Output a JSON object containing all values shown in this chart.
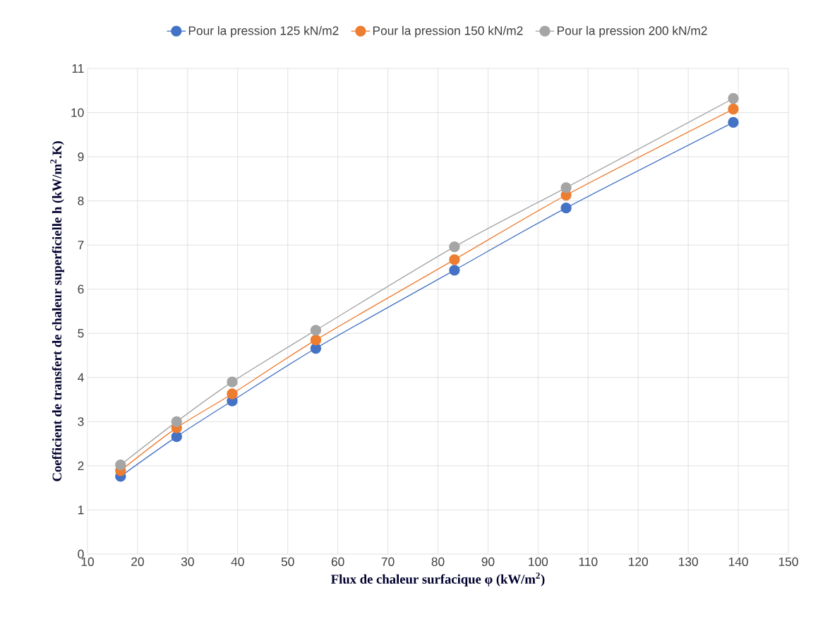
{
  "chart_data": {
    "type": "line",
    "xlabel": "Flux de chaleur surfacique φ (kW/m$^{2}$)",
    "ylabel": "Coefficient de transfert de chaleur superficielle h (kW/m$^{2}$.K)",
    "x": [
      16.6,
      27.8,
      38.9,
      55.6,
      83.3,
      105.6,
      139
    ],
    "series": [
      {
        "name": "Pour la pression 125 kN/m2",
        "color": "#4472c4",
        "values": [
          1.76,
          2.66,
          3.47,
          4.66,
          6.43,
          7.84,
          9.78
        ]
      },
      {
        "name": "Pour la pression 150 kN/m2",
        "color": "#ed7d31",
        "values": [
          1.89,
          2.86,
          3.63,
          4.85,
          6.67,
          8.13,
          10.08
        ]
      },
      {
        "name": "Pour la pression 200 kN/m2",
        "color": "#a5a5a5",
        "values": [
          2.02,
          3.0,
          3.9,
          5.07,
          6.96,
          8.3,
          10.32
        ]
      }
    ],
    "xlim": [
      10,
      150
    ],
    "xticks": [
      10,
      20,
      30,
      40,
      50,
      60,
      70,
      80,
      90,
      100,
      110,
      120,
      130,
      140,
      150
    ],
    "ylim": [
      0,
      11
    ],
    "yticks": [
      0,
      1,
      2,
      3,
      4,
      5,
      6,
      7,
      8,
      9,
      10,
      11
    ],
    "grid": true,
    "legend": "top",
    "marker": "circle",
    "line_style": "solid"
  }
}
